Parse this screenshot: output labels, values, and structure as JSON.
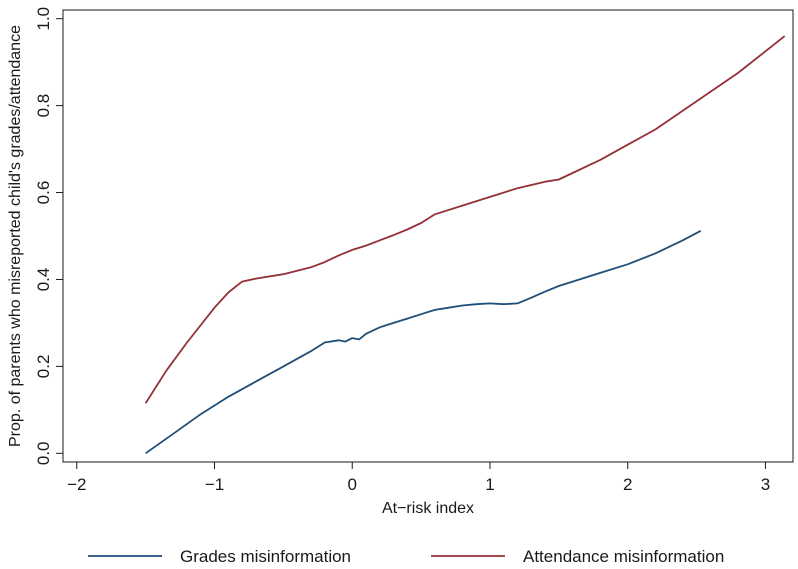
{
  "chart_data": {
    "type": "line",
    "title": "",
    "xlabel": "At−risk index",
    "ylabel": "Prop. of parents who misreported child's grades/attendance",
    "xlim": [
      -2.1,
      3.2
    ],
    "ylim": [
      -0.02,
      1.02
    ],
    "xticks": [
      -2,
      -1,
      0,
      1,
      2,
      3
    ],
    "xtick_labels": [
      "−2",
      "−1",
      "0",
      "1",
      "2",
      "3"
    ],
    "yticks": [
      0.0,
      0.2,
      0.4,
      0.6,
      0.8,
      1.0
    ],
    "ytick_labels": [
      "0.0",
      "0.2",
      "0.4",
      "0.6",
      "0.8",
      "1.0"
    ],
    "grid": false,
    "legend_position": "bottom",
    "series": [
      {
        "name": "Grades misinformation",
        "color": "#1f4e79",
        "x": [
          -1.5,
          -1.3,
          -1.1,
          -0.9,
          -0.7,
          -0.5,
          -0.3,
          -0.2,
          -0.1,
          -0.05,
          0.0,
          0.05,
          0.1,
          0.2,
          0.3,
          0.4,
          0.5,
          0.6,
          0.7,
          0.8,
          0.9,
          1.0,
          1.1,
          1.2,
          1.3,
          1.4,
          1.5,
          1.6,
          1.8,
          2.0,
          2.2,
          2.4,
          2.53
        ],
        "y": [
          0.0,
          0.045,
          0.09,
          0.13,
          0.165,
          0.2,
          0.235,
          0.255,
          0.26,
          0.257,
          0.265,
          0.262,
          0.275,
          0.29,
          0.3,
          0.31,
          0.32,
          0.33,
          0.335,
          0.34,
          0.343,
          0.345,
          0.343,
          0.345,
          0.358,
          0.372,
          0.385,
          0.395,
          0.415,
          0.435,
          0.46,
          0.49,
          0.512
        ]
      },
      {
        "name": "Attendance misinformation",
        "color": "#943037",
        "x": [
          -1.5,
          -1.35,
          -1.2,
          -1.0,
          -0.9,
          -0.8,
          -0.7,
          -0.5,
          -0.3,
          -0.2,
          -0.1,
          0.0,
          0.1,
          0.2,
          0.3,
          0.4,
          0.5,
          0.6,
          0.8,
          1.0,
          1.2,
          1.4,
          1.5,
          1.6,
          1.8,
          2.0,
          2.2,
          2.5,
          2.8,
          3.14
        ],
        "y": [
          0.115,
          0.19,
          0.255,
          0.335,
          0.37,
          0.395,
          0.402,
          0.412,
          0.428,
          0.44,
          0.455,
          0.468,
          0.478,
          0.49,
          0.502,
          0.515,
          0.53,
          0.55,
          0.57,
          0.59,
          0.61,
          0.625,
          0.63,
          0.645,
          0.675,
          0.71,
          0.745,
          0.81,
          0.875,
          0.96
        ]
      }
    ]
  }
}
